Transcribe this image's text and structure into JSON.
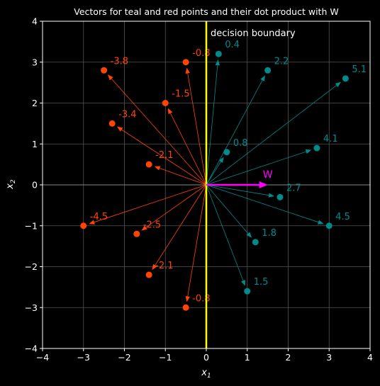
{
  "chart_data": {
    "type": "scatter",
    "title": "Vectors for teal and red points and their dot product with W",
    "xlabel": "x1",
    "ylabel": "x2",
    "xlim": [
      -4,
      4
    ],
    "ylim": [
      -4,
      4
    ],
    "xticks": [
      "−4",
      "−3",
      "−2",
      "−1",
      "0",
      "1",
      "2",
      "3",
      "4"
    ],
    "yticks": [
      "−4",
      "−3",
      "−2",
      "−1",
      "0",
      "1",
      "2",
      "3",
      "4"
    ],
    "grid": true,
    "decision_boundary": {
      "x": 0,
      "label": "decision boundary",
      "color": "#ffff00"
    },
    "w_vector": {
      "x": 1.5,
      "y": 0,
      "label": "W",
      "color": "#ff00ff"
    },
    "colors": {
      "teal": "#008b8b",
      "red": "#ff4500",
      "grid": "#555555",
      "axis_line": "#888888"
    },
    "series": [
      {
        "color": "teal",
        "points": [
          {
            "x": 0.3,
            "y": 3.2,
            "dot": "0.4"
          },
          {
            "x": 1.5,
            "y": 2.8,
            "dot": "2.2"
          },
          {
            "x": 3.4,
            "y": 2.6,
            "dot": "5.1"
          },
          {
            "x": 0.5,
            "y": 0.8,
            "dot": "0.8"
          },
          {
            "x": 2.7,
            "y": 0.9,
            "dot": "4.1"
          },
          {
            "x": 1.8,
            "y": -0.3,
            "dot": "2.7"
          },
          {
            "x": 3.0,
            "y": -1.0,
            "dot": "4.5"
          },
          {
            "x": 1.2,
            "y": -1.4,
            "dot": "1.8"
          },
          {
            "x": 1.0,
            "y": -2.6,
            "dot": "1.5"
          }
        ]
      },
      {
        "color": "red",
        "points": [
          {
            "x": -0.5,
            "y": 3.0,
            "dot": "-0.8"
          },
          {
            "x": -2.5,
            "y": 2.8,
            "dot": "-3.8"
          },
          {
            "x": -1.0,
            "y": 2.0,
            "dot": "-1.5"
          },
          {
            "x": -2.3,
            "y": 1.5,
            "dot": "-3.4"
          },
          {
            "x": -1.4,
            "y": 0.5,
            "dot": "-2.1"
          },
          {
            "x": -3.0,
            "y": -1.0,
            "dot": "-4.5"
          },
          {
            "x": -1.7,
            "y": -1.2,
            "dot": "-2.5"
          },
          {
            "x": -1.4,
            "y": -2.2,
            "dot": "-2.1"
          },
          {
            "x": -0.5,
            "y": -3.0,
            "dot": "-0.8"
          }
        ]
      }
    ]
  }
}
